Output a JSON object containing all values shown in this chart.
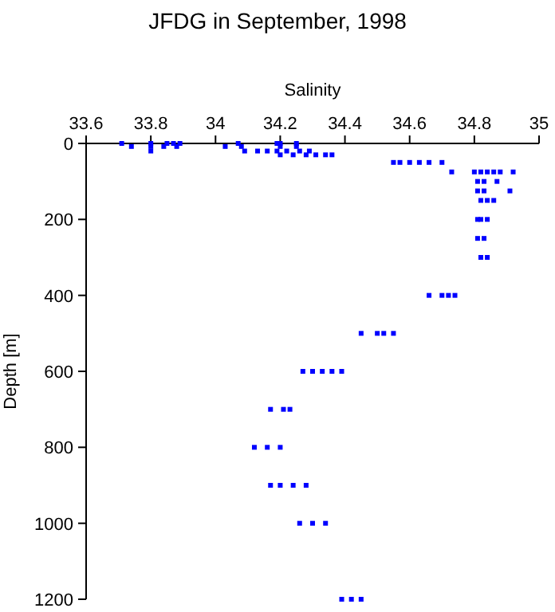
{
  "chart_data": {
    "type": "scatter",
    "title": "JFDG in September, 1998",
    "xlabel": "Salinity",
    "ylabel": "Depth [m]",
    "xlim": [
      33.6,
      35
    ],
    "xticks": [
      33.6,
      33.8,
      34,
      34.2,
      34.4,
      34.6,
      34.8,
      35
    ],
    "ylim": [
      1200,
      0
    ],
    "yticks": [
      0,
      200,
      400,
      600,
      800,
      1000,
      1200
    ],
    "grid": false,
    "marker": "square",
    "series": [
      {
        "color": "#0000ff",
        "x": [
          33.71,
          33.8,
          33.85,
          33.87,
          33.89,
          34.07,
          34.19,
          34.2,
          34.25,
          33.74,
          33.8,
          33.84,
          33.88,
          34.03,
          34.08,
          34.2,
          34.25,
          33.8,
          34.09,
          34.13,
          34.16,
          34.19,
          34.22,
          34.26,
          34.29,
          34.2,
          34.24,
          34.28,
          34.31,
          34.34,
          34.36,
          34.55,
          34.57,
          34.6,
          34.63,
          34.66,
          34.7,
          34.73,
          34.8,
          34.82,
          34.84,
          34.86,
          34.88,
          34.92,
          34.81,
          34.83,
          34.87,
          34.81,
          34.83,
          34.91,
          34.82,
          34.84,
          34.86,
          34.81,
          34.82,
          34.84,
          34.81,
          34.83,
          34.82,
          34.84,
          34.66,
          34.7,
          34.72,
          34.74,
          34.45,
          34.5,
          34.52,
          34.55,
          34.27,
          34.3,
          34.33,
          34.36,
          34.39,
          34.17,
          34.21,
          34.23,
          34.12,
          34.16,
          34.2,
          34.17,
          34.2,
          34.24,
          34.28,
          34.26,
          34.3,
          34.34,
          34.39,
          34.42,
          34.45
        ],
        "values": [
          0,
          0,
          0,
          0,
          0,
          0,
          0,
          0,
          0,
          8,
          8,
          8,
          8,
          8,
          8,
          8,
          8,
          20,
          20,
          20,
          20,
          20,
          20,
          20,
          20,
          30,
          30,
          30,
          30,
          30,
          30,
          50,
          50,
          50,
          50,
          50,
          50,
          75,
          75,
          75,
          75,
          75,
          75,
          75,
          100,
          100,
          100,
          125,
          125,
          125,
          150,
          150,
          150,
          200,
          200,
          200,
          250,
          250,
          300,
          300,
          400,
          400,
          400,
          400,
          500,
          500,
          500,
          500,
          600,
          600,
          600,
          600,
          600,
          700,
          700,
          700,
          800,
          800,
          800,
          900,
          900,
          900,
          900,
          1000,
          1000,
          1000,
          1200,
          1200,
          1200
        ]
      }
    ]
  }
}
